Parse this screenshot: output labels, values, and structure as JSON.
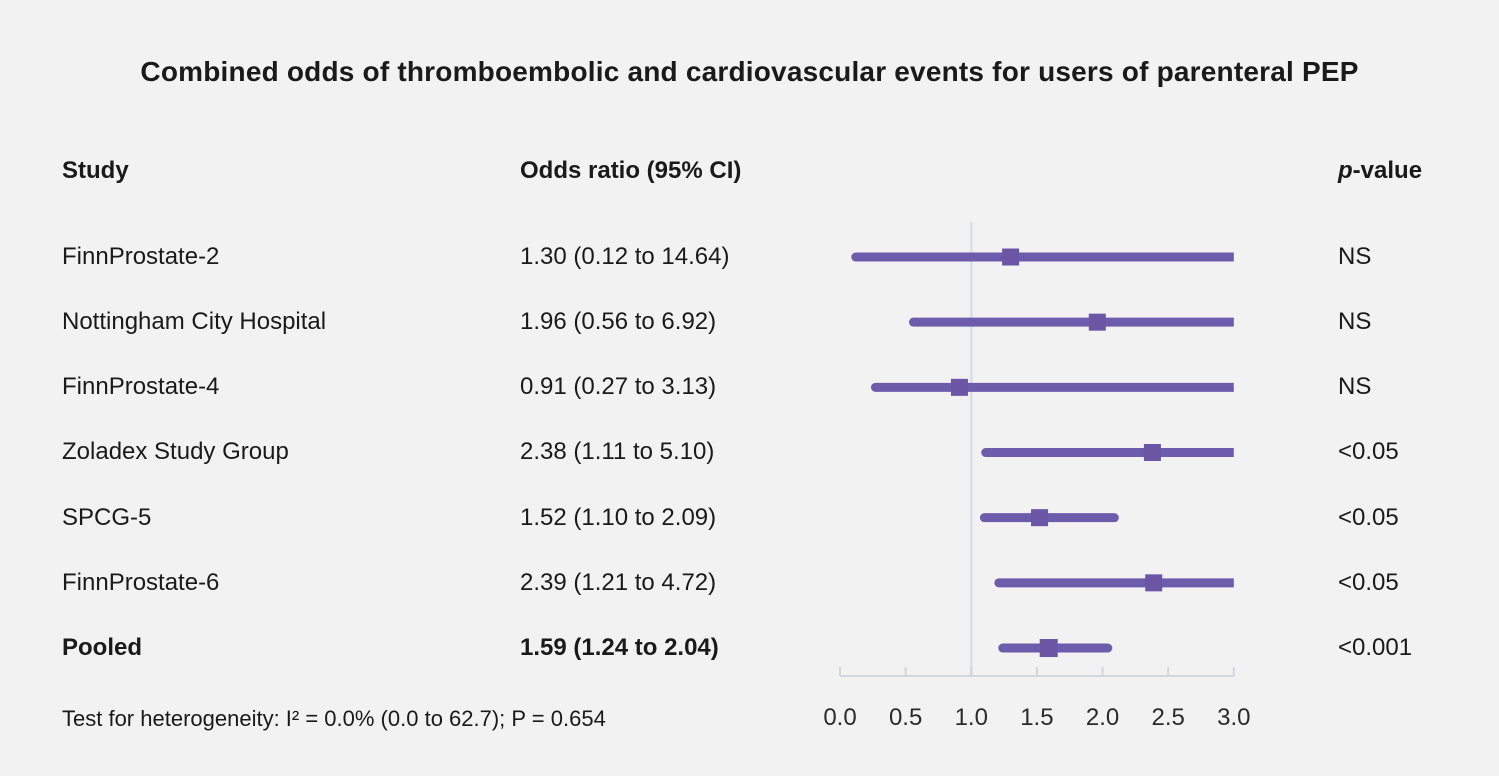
{
  "title": "Combined odds of thromboembolic and cardiovascular events for users of parenteral PEP",
  "columns": {
    "study": "Study",
    "odds_ratio": "Odds ratio (95% CI)",
    "p_prefix": "p",
    "p_suffix": "-value"
  },
  "rows": [
    {
      "study": "FinnProstate-2",
      "or_ci": "1.30 (0.12 to 14.64)",
      "p": "NS"
    },
    {
      "study": "Nottingham City Hospital",
      "or_ci": "1.96 (0.56 to 6.92)",
      "p": "NS"
    },
    {
      "study": "FinnProstate-4",
      "or_ci": "0.91 (0.27 to 3.13)",
      "p": "NS"
    },
    {
      "study": "Zoladex Study Group",
      "or_ci": "2.38 (1.11 to 5.10)",
      "p": "<0.05"
    },
    {
      "study": "SPCG-5",
      "or_ci": "1.52 (1.10 to 2.09)",
      "p": "<0.05"
    },
    {
      "study": "FinnProstate-6",
      "or_ci": "2.39 (1.21 to 4.72)",
      "p": "<0.05"
    },
    {
      "study": "Pooled",
      "or_ci": "1.59 (1.24 to 2.04)",
      "p": "<0.001"
    }
  ],
  "footer": "Test for heterogeneity: I² = 0.0% (0.0 to 62.7); P = 0.654",
  "colors": {
    "background": "#f2f2f3",
    "text": "#1a1a1a",
    "ci_line": "#6d5cab",
    "marker": "#6b55a5",
    "reference_line": "#dce0e6",
    "axis": "#d3d6db",
    "tick_text": "#2b2b2b"
  },
  "chart_data": {
    "type": "forest",
    "title": "Combined odds of thromboembolic and cardiovascular events for users of parenteral PEP",
    "xlim": [
      0,
      3
    ],
    "ticks": [
      "0.0",
      "0.5",
      "1.0",
      "1.5",
      "2.0",
      "2.5",
      "3.0"
    ],
    "reference_line": 1.0,
    "grid": false,
    "studies": [
      {
        "name": "FinnProstate-2",
        "or": 1.3,
        "ci_low": 0.12,
        "ci_high": 14.64,
        "p": "NS",
        "pooled": false
      },
      {
        "name": "Nottingham City Hospital",
        "or": 1.96,
        "ci_low": 0.56,
        "ci_high": 6.92,
        "p": "NS",
        "pooled": false
      },
      {
        "name": "FinnProstate-4",
        "or": 0.91,
        "ci_low": 0.27,
        "ci_high": 3.13,
        "p": "NS",
        "pooled": false
      },
      {
        "name": "Zoladex Study Group",
        "or": 2.38,
        "ci_low": 1.11,
        "ci_high": 5.1,
        "p": "<0.05",
        "pooled": false
      },
      {
        "name": "SPCG-5",
        "or": 1.52,
        "ci_low": 1.1,
        "ci_high": 2.09,
        "p": "<0.05",
        "pooled": false
      },
      {
        "name": "FinnProstate-6",
        "or": 2.39,
        "ci_low": 1.21,
        "ci_high": 4.72,
        "p": "<0.05",
        "pooled": false
      },
      {
        "name": "Pooled",
        "or": 1.59,
        "ci_low": 1.24,
        "ci_high": 2.04,
        "p": "<0.001",
        "pooled": true
      }
    ],
    "heterogeneity": "I² = 0.0% (0.0 to 62.7); P = 0.654"
  }
}
